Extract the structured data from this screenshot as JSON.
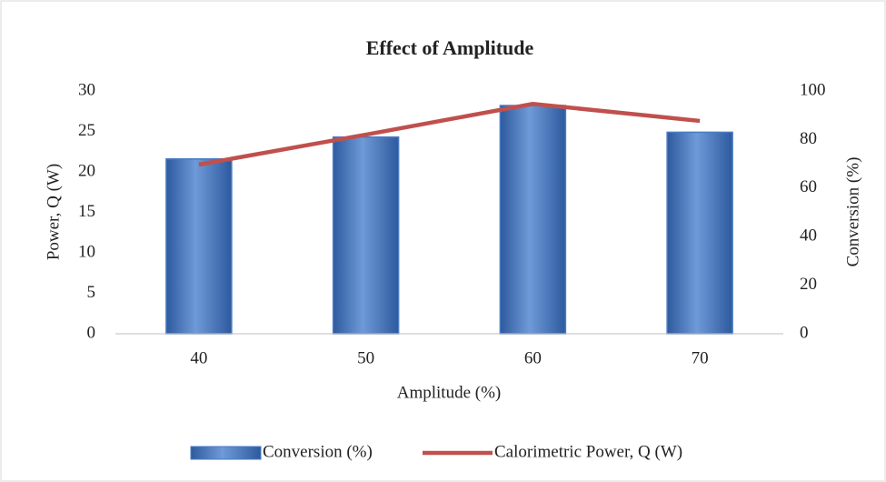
{
  "chart_data": {
    "type": "bar_line",
    "title": "Effect of Amplitude",
    "x_label": "Amplitude (%)",
    "y_label": "Power, Q (W)",
    "y2_label": "Conversion (%)",
    "categories": [
      "40",
      "50",
      "60",
      "70"
    ],
    "series": [
      {
        "name": "Conversion (%)",
        "type": "bar",
        "axis": "y2",
        "color": "#4a7bc4",
        "values": [
          72,
          81,
          94,
          83
        ]
      },
      {
        "name": "Calorimetric Power, Q (W)",
        "type": "line",
        "axis": "y",
        "color": "#c0504d",
        "values": [
          20.9,
          24.6,
          28.4,
          26.3
        ]
      }
    ],
    "ylim": [
      0,
      30
    ],
    "yticks": [
      0,
      5,
      10,
      15,
      20,
      25,
      30
    ],
    "y2lim": [
      0,
      100
    ],
    "y2ticks": [
      0,
      20,
      40,
      60,
      80,
      100
    ],
    "legend": "bottom",
    "grid": false
  }
}
